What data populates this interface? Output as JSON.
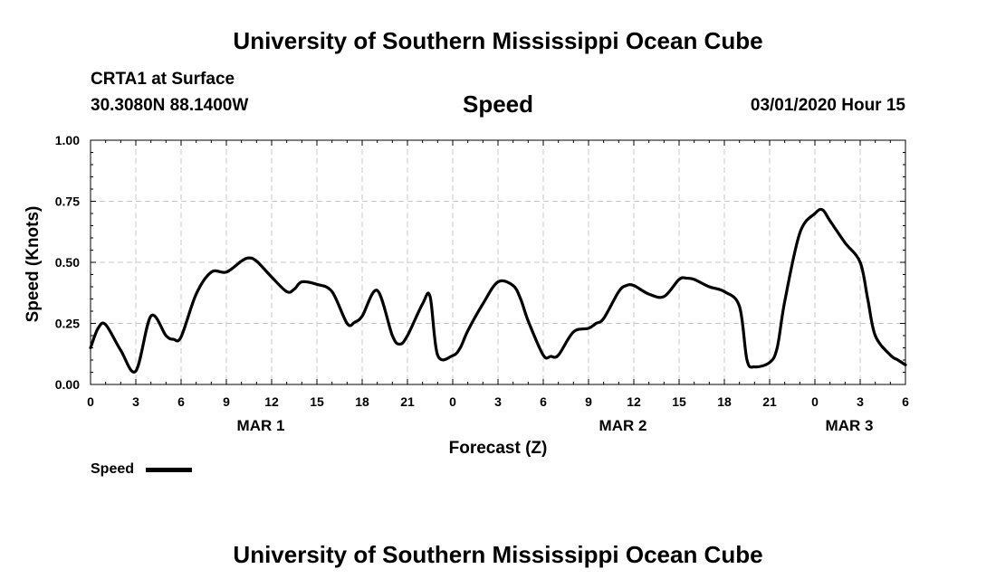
{
  "header": {
    "title": "University of Southern Mississippi Ocean Cube",
    "station": "CRTA1 at Surface",
    "coords": "30.3080N 88.1400W",
    "date": "03/01/2020 Hour 15"
  },
  "footer": {
    "title": "University of Southern Mississippi Ocean Cube"
  },
  "legend": {
    "label": "Speed",
    "color": "#000000"
  },
  "chart_data": {
    "type": "line",
    "title": "Speed",
    "xlabel": "Forecast (Z)",
    "ylabel": "Speed (Knots)",
    "ylim": [
      0,
      1
    ],
    "xlim": [
      0,
      54
    ],
    "grid": true,
    "yticks": [
      0,
      0.25,
      0.5,
      0.75,
      1
    ],
    "ytick_labels": [
      "0.00",
      "0.25",
      "0.50",
      "0.75",
      "1.00"
    ],
    "xticks": [
      0,
      3,
      6,
      9,
      12,
      15,
      18,
      21,
      24,
      27,
      30,
      33,
      36,
      39,
      42,
      45,
      48,
      51,
      54
    ],
    "xtick_labels": [
      "0",
      "3",
      "6",
      "9",
      "12",
      "15",
      "18",
      "21",
      "0",
      "3",
      "6",
      "9",
      "12",
      "15",
      "18",
      "21",
      "0",
      "3",
      "6"
    ],
    "day_labels": [
      {
        "label": "MAR 1",
        "x": 12
      },
      {
        "label": "MAR 2",
        "x": 36
      },
      {
        "label": "MAR 3",
        "x": 51
      }
    ],
    "series": [
      {
        "name": "Speed",
        "color": "#000000",
        "x": [
          0,
          0.5,
          1,
          2,
          3,
          4,
          5,
          5.5,
          6,
          7,
          8,
          9,
          10,
          10.5,
          11,
          12,
          13,
          13.5,
          14,
          15,
          16,
          17,
          17.5,
          18,
          19,
          20,
          20.5,
          21,
          22,
          22.5,
          23,
          24,
          24.5,
          25,
          26,
          27,
          28,
          28.5,
          29,
          30,
          30.5,
          31,
          32,
          33,
          33.5,
          34,
          35,
          35.5,
          36,
          37,
          38,
          39,
          39.5,
          40,
          41,
          42,
          43,
          43.5,
          44,
          45,
          45.5,
          46,
          47,
          48,
          48.5,
          49,
          50,
          51,
          51.5,
          52,
          53,
          53.5,
          54
        ],
        "values": [
          0.15,
          0.23,
          0.245,
          0.14,
          0.055,
          0.28,
          0.2,
          0.185,
          0.195,
          0.37,
          0.46,
          0.46,
          0.505,
          0.518,
          0.505,
          0.44,
          0.38,
          0.39,
          0.42,
          0.41,
          0.38,
          0.25,
          0.255,
          0.28,
          0.385,
          0.2,
          0.165,
          0.2,
          0.33,
          0.36,
          0.12,
          0.118,
          0.15,
          0.22,
          0.33,
          0.42,
          0.405,
          0.35,
          0.26,
          0.12,
          0.115,
          0.12,
          0.215,
          0.23,
          0.25,
          0.27,
          0.38,
          0.405,
          0.405,
          0.37,
          0.36,
          0.43,
          0.435,
          0.43,
          0.4,
          0.38,
          0.32,
          0.1,
          0.072,
          0.09,
          0.15,
          0.34,
          0.62,
          0.7,
          0.715,
          0.67,
          0.58,
          0.5,
          0.35,
          0.2,
          0.12,
          0.1,
          0.08
        ]
      }
    ]
  }
}
